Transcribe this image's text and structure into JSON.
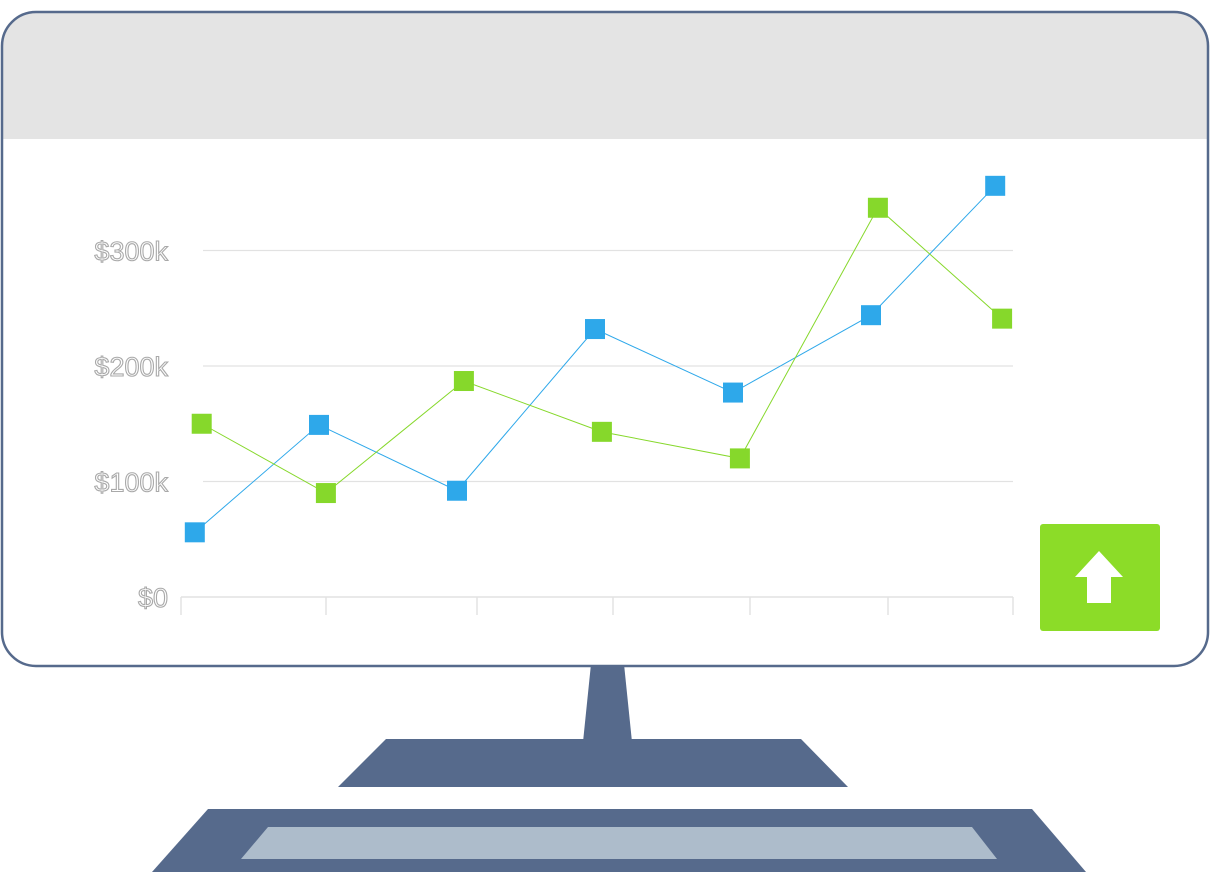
{
  "colors": {
    "frame": "#566A8C",
    "screen": "#ffffff",
    "screen_header": "#E4E4E4",
    "series_blue": "#2EA8EA",
    "series_green": "#86D82B",
    "badge": "#8CDC28",
    "keyboard_inset": "#ADBCCB",
    "grid": "#E2E2E2",
    "tick_text_stroke": "#A9A9A9"
  },
  "badge": {
    "icon": "arrow-up-icon"
  },
  "chart_data": {
    "type": "line",
    "title": "",
    "xlabel": "",
    "ylabel": "",
    "ylim": [
      0,
      360000
    ],
    "y_ticks": [
      {
        "value": 0,
        "label": "$0"
      },
      {
        "value": 100000,
        "label": "$100k"
      },
      {
        "value": 200000,
        "label": "$200k"
      },
      {
        "value": 300000,
        "label": "$300k"
      }
    ],
    "grid": true,
    "legend": "none",
    "series": [
      {
        "color": "#2EA8EA",
        "x": [
          0.1,
          1.0,
          2.0,
          3.0,
          4.0,
          5.0,
          5.9
        ],
        "values": [
          56000,
          149000,
          92000,
          232000,
          177000,
          244000,
          356000
        ]
      },
      {
        "color": "#86D82B",
        "x": [
          0.15,
          1.05,
          2.05,
          3.05,
          4.05,
          5.05,
          5.95
        ],
        "values": [
          150000,
          90000,
          187000,
          143000,
          120000,
          337000,
          241000
        ]
      }
    ]
  }
}
